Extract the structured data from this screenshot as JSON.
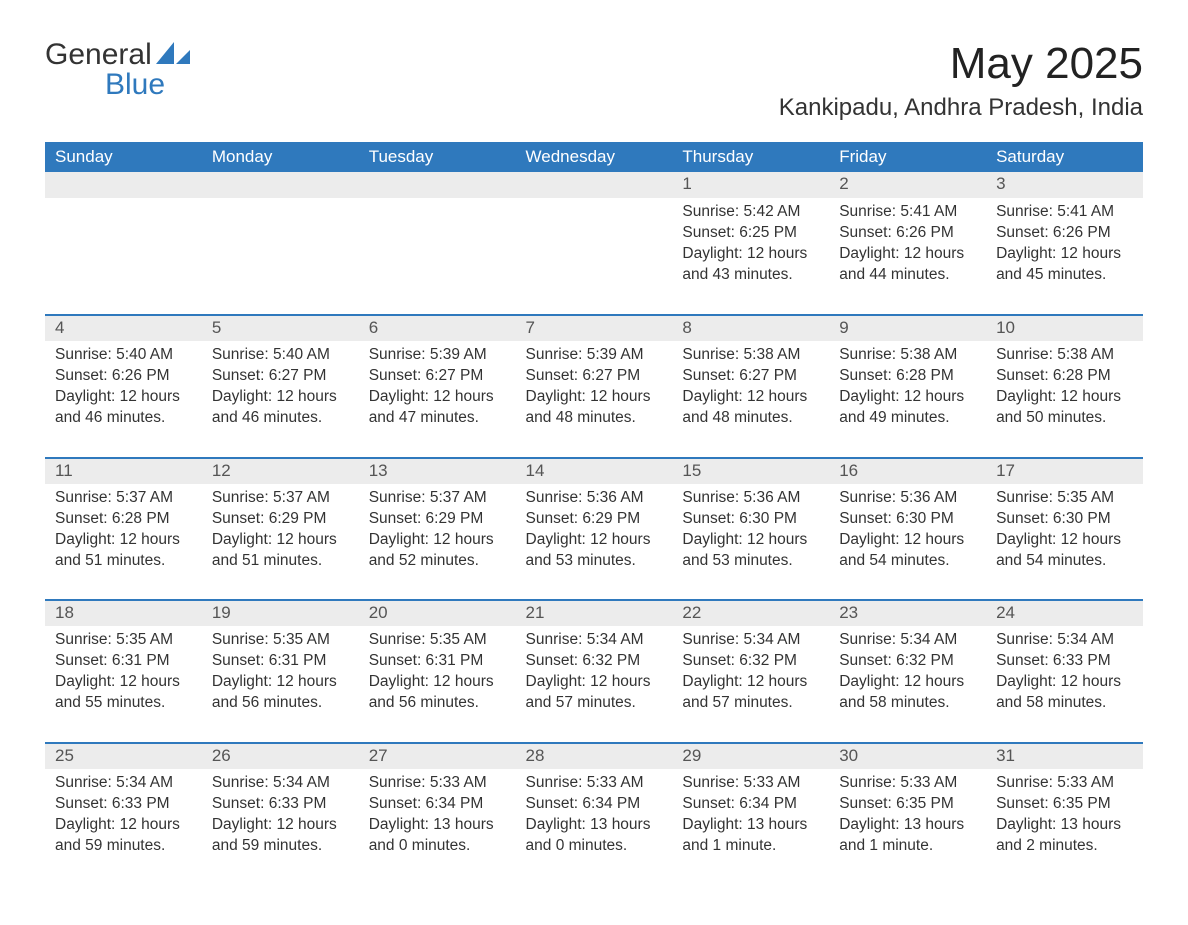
{
  "logo": {
    "word1": "General",
    "word2": "Blue"
  },
  "title": "May 2025",
  "location": "Kankipadu, Andhra Pradesh, India",
  "colors": {
    "accent": "#2f79bd",
    "daynum_bg": "#ececec",
    "text": "#333333",
    "white": "#ffffff"
  },
  "weekdays": [
    "Sunday",
    "Monday",
    "Tuesday",
    "Wednesday",
    "Thursday",
    "Friday",
    "Saturday"
  ],
  "weeks": [
    [
      null,
      null,
      null,
      null,
      {
        "n": "1",
        "sr": "Sunrise: 5:42 AM",
        "ss": "Sunset: 6:25 PM",
        "dl": "Daylight: 12 hours and 43 minutes."
      },
      {
        "n": "2",
        "sr": "Sunrise: 5:41 AM",
        "ss": "Sunset: 6:26 PM",
        "dl": "Daylight: 12 hours and 44 minutes."
      },
      {
        "n": "3",
        "sr": "Sunrise: 5:41 AM",
        "ss": "Sunset: 6:26 PM",
        "dl": "Daylight: 12 hours and 45 minutes."
      }
    ],
    [
      {
        "n": "4",
        "sr": "Sunrise: 5:40 AM",
        "ss": "Sunset: 6:26 PM",
        "dl": "Daylight: 12 hours and 46 minutes."
      },
      {
        "n": "5",
        "sr": "Sunrise: 5:40 AM",
        "ss": "Sunset: 6:27 PM",
        "dl": "Daylight: 12 hours and 46 minutes."
      },
      {
        "n": "6",
        "sr": "Sunrise: 5:39 AM",
        "ss": "Sunset: 6:27 PM",
        "dl": "Daylight: 12 hours and 47 minutes."
      },
      {
        "n": "7",
        "sr": "Sunrise: 5:39 AM",
        "ss": "Sunset: 6:27 PM",
        "dl": "Daylight: 12 hours and 48 minutes."
      },
      {
        "n": "8",
        "sr": "Sunrise: 5:38 AM",
        "ss": "Sunset: 6:27 PM",
        "dl": "Daylight: 12 hours and 48 minutes."
      },
      {
        "n": "9",
        "sr": "Sunrise: 5:38 AM",
        "ss": "Sunset: 6:28 PM",
        "dl": "Daylight: 12 hours and 49 minutes."
      },
      {
        "n": "10",
        "sr": "Sunrise: 5:38 AM",
        "ss": "Sunset: 6:28 PM",
        "dl": "Daylight: 12 hours and 50 minutes."
      }
    ],
    [
      {
        "n": "11",
        "sr": "Sunrise: 5:37 AM",
        "ss": "Sunset: 6:28 PM",
        "dl": "Daylight: 12 hours and 51 minutes."
      },
      {
        "n": "12",
        "sr": "Sunrise: 5:37 AM",
        "ss": "Sunset: 6:29 PM",
        "dl": "Daylight: 12 hours and 51 minutes."
      },
      {
        "n": "13",
        "sr": "Sunrise: 5:37 AM",
        "ss": "Sunset: 6:29 PM",
        "dl": "Daylight: 12 hours and 52 minutes."
      },
      {
        "n": "14",
        "sr": "Sunrise: 5:36 AM",
        "ss": "Sunset: 6:29 PM",
        "dl": "Daylight: 12 hours and 53 minutes."
      },
      {
        "n": "15",
        "sr": "Sunrise: 5:36 AM",
        "ss": "Sunset: 6:30 PM",
        "dl": "Daylight: 12 hours and 53 minutes."
      },
      {
        "n": "16",
        "sr": "Sunrise: 5:36 AM",
        "ss": "Sunset: 6:30 PM",
        "dl": "Daylight: 12 hours and 54 minutes."
      },
      {
        "n": "17",
        "sr": "Sunrise: 5:35 AM",
        "ss": "Sunset: 6:30 PM",
        "dl": "Daylight: 12 hours and 54 minutes."
      }
    ],
    [
      {
        "n": "18",
        "sr": "Sunrise: 5:35 AM",
        "ss": "Sunset: 6:31 PM",
        "dl": "Daylight: 12 hours and 55 minutes."
      },
      {
        "n": "19",
        "sr": "Sunrise: 5:35 AM",
        "ss": "Sunset: 6:31 PM",
        "dl": "Daylight: 12 hours and 56 minutes."
      },
      {
        "n": "20",
        "sr": "Sunrise: 5:35 AM",
        "ss": "Sunset: 6:31 PM",
        "dl": "Daylight: 12 hours and 56 minutes."
      },
      {
        "n": "21",
        "sr": "Sunrise: 5:34 AM",
        "ss": "Sunset: 6:32 PM",
        "dl": "Daylight: 12 hours and 57 minutes."
      },
      {
        "n": "22",
        "sr": "Sunrise: 5:34 AM",
        "ss": "Sunset: 6:32 PM",
        "dl": "Daylight: 12 hours and 57 minutes."
      },
      {
        "n": "23",
        "sr": "Sunrise: 5:34 AM",
        "ss": "Sunset: 6:32 PM",
        "dl": "Daylight: 12 hours and 58 minutes."
      },
      {
        "n": "24",
        "sr": "Sunrise: 5:34 AM",
        "ss": "Sunset: 6:33 PM",
        "dl": "Daylight: 12 hours and 58 minutes."
      }
    ],
    [
      {
        "n": "25",
        "sr": "Sunrise: 5:34 AM",
        "ss": "Sunset: 6:33 PM",
        "dl": "Daylight: 12 hours and 59 minutes."
      },
      {
        "n": "26",
        "sr": "Sunrise: 5:34 AM",
        "ss": "Sunset: 6:33 PM",
        "dl": "Daylight: 12 hours and 59 minutes."
      },
      {
        "n": "27",
        "sr": "Sunrise: 5:33 AM",
        "ss": "Sunset: 6:34 PM",
        "dl": "Daylight: 13 hours and 0 minutes."
      },
      {
        "n": "28",
        "sr": "Sunrise: 5:33 AM",
        "ss": "Sunset: 6:34 PM",
        "dl": "Daylight: 13 hours and 0 minutes."
      },
      {
        "n": "29",
        "sr": "Sunrise: 5:33 AM",
        "ss": "Sunset: 6:34 PM",
        "dl": "Daylight: 13 hours and 1 minute."
      },
      {
        "n": "30",
        "sr": "Sunrise: 5:33 AM",
        "ss": "Sunset: 6:35 PM",
        "dl": "Daylight: 13 hours and 1 minute."
      },
      {
        "n": "31",
        "sr": "Sunrise: 5:33 AM",
        "ss": "Sunset: 6:35 PM",
        "dl": "Daylight: 13 hours and 2 minutes."
      }
    ]
  ]
}
